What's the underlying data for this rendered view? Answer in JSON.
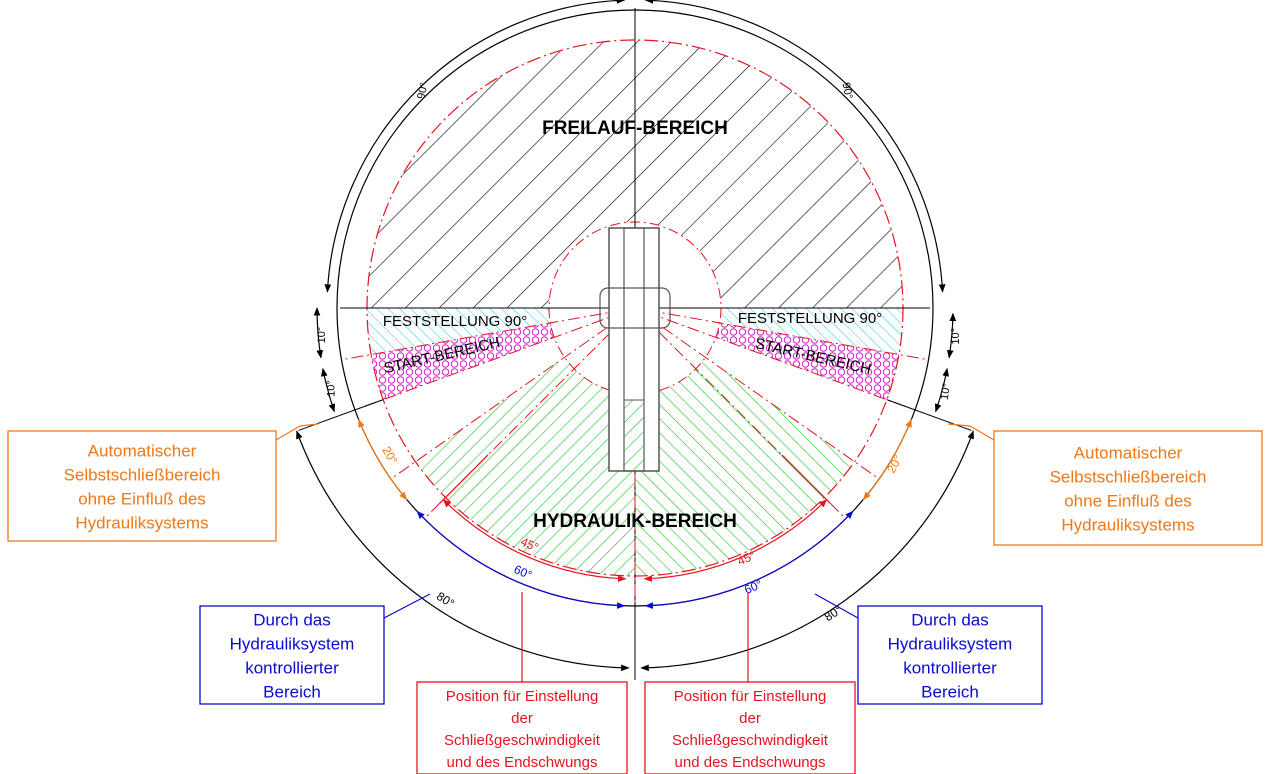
{
  "colors": {
    "black": "#000000",
    "red": "#e6141e",
    "orange": "#f07814",
    "blue": "#0a0ad2",
    "green": "#1ec81e",
    "cyan": "#28c8e6",
    "magenta": "#d21ec8",
    "gray": "#555555"
  },
  "zones": {
    "freilauf": "FREILAUF-BEREICH",
    "hydraulik": "HYDRAULIK-BEREICH",
    "feststellung_left": "FESTSTELLUNG 90°",
    "feststellung_right": "FESTSTELLUNG 90°",
    "start_left": "START-BEREICH",
    "start_right": "START-BEREICH"
  },
  "angles": {
    "ninety_left": "90°",
    "ninety_right": "90°",
    "ten_left_a": "10°",
    "ten_left_b": "10°",
    "ten_right_a": "10°",
    "ten_right_b": "10°",
    "twenty_left": "20°",
    "twenty_right": "20°",
    "eighty_left": "80°",
    "eighty_right": "80°",
    "sixty_left": "60°",
    "sixty_right": "60°",
    "fortyfive_left": "45°",
    "fortyfive_right": "45°"
  },
  "callouts": {
    "auto_left": [
      "Automatischer",
      "Selbstschließbereich",
      "ohne Einfluß des",
      "Hydrauliksystems"
    ],
    "auto_right": [
      "Automatischer",
      "Selbstschließbereich",
      "ohne Einfluß des",
      "Hydrauliksystems"
    ],
    "hydro_left": [
      "Durch das",
      "Hydrauliksystem",
      "kontrollierter",
      "Bereich"
    ],
    "hydro_right": [
      "Durch das",
      "Hydrauliksystem",
      "kontrollierter",
      "Bereich"
    ],
    "pos_left": [
      "Position für Einstellung",
      "der",
      "Schließgeschwindigkeit",
      "und des Endschwungs"
    ],
    "pos_right": [
      "Position für Einstellung",
      "der",
      "Schließgeschwindigkeit",
      "und des Endschwungs"
    ]
  }
}
